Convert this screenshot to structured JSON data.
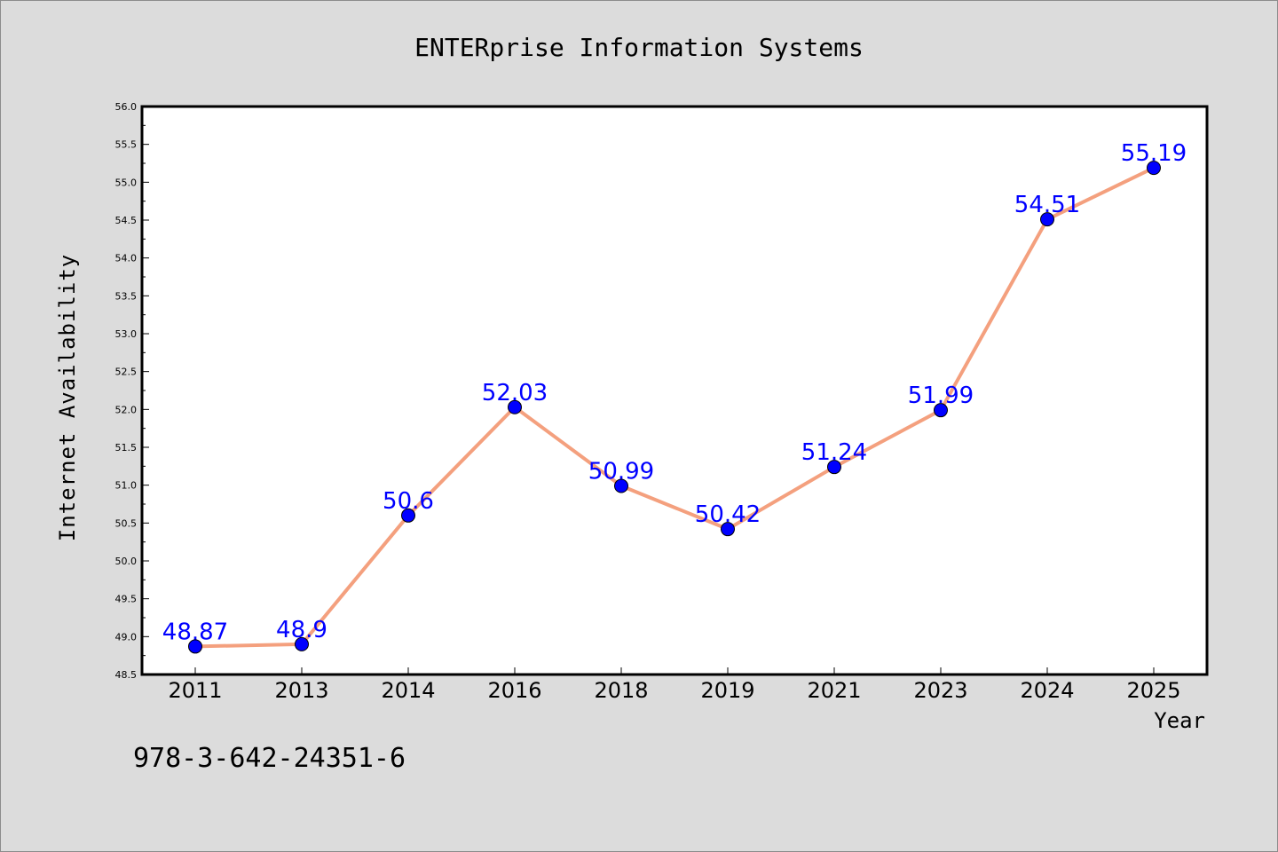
{
  "chart_data": {
    "type": "line",
    "title": "ENTERprise Information Systems",
    "xlabel": "Year",
    "ylabel": "Internet Availability",
    "categories": [
      "2011",
      "2013",
      "2014",
      "2016",
      "2018",
      "2019",
      "2021",
      "2023",
      "2024",
      "2025"
    ],
    "series": [
      {
        "values": [
          48.87,
          48.9,
          50.6,
          52.03,
          50.99,
          50.42,
          51.24,
          51.99,
          54.51,
          55.19
        ],
        "labels": [
          "48.87",
          "48.9",
          "50.6",
          "52.03",
          "50.99",
          "50.42",
          "51.24",
          "51.99",
          "54.51",
          "55.19"
        ]
      }
    ],
    "ylim": [
      48.5,
      56.0
    ],
    "yticks": [
      "48.5",
      "49.0",
      "49.5",
      "50.0",
      "50.5",
      "51.0",
      "51.5",
      "52.0",
      "52.5",
      "53.0",
      "53.5",
      "54.0",
      "54.5",
      "55.0",
      "55.5",
      "56.0"
    ],
    "grid": false,
    "line_color": "#f4a07e",
    "marker_color": "#0000ff",
    "label_color": "#0000ff"
  },
  "footer": {
    "isbn": "978-3-642-24351-6"
  }
}
